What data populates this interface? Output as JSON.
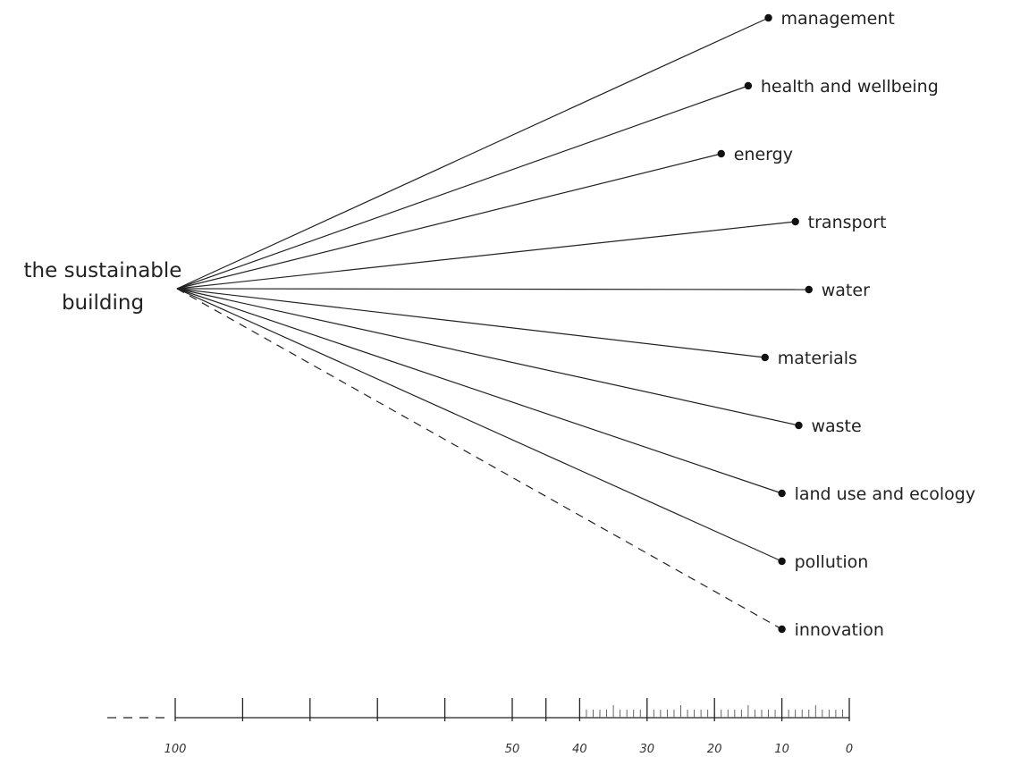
{
  "hub": {
    "line1": "the sustainable",
    "line2": "building"
  },
  "categories": [
    {
      "label": "management",
      "value": 12,
      "dashed": false
    },
    {
      "label": "health and wellbeing",
      "value": 15,
      "dashed": false
    },
    {
      "label": "energy",
      "value": 19,
      "dashed": false
    },
    {
      "label": "transport",
      "value": 8,
      "dashed": false
    },
    {
      "label": "water",
      "value": 6,
      "dashed": false
    },
    {
      "label": "materials",
      "value": 12.5,
      "dashed": false
    },
    {
      "label": "waste",
      "value": 7.5,
      "dashed": false
    },
    {
      "label": "land use and ecology",
      "value": 10,
      "dashed": false
    },
    {
      "label": "pollution",
      "value": 10,
      "dashed": false
    },
    {
      "label": "innovation",
      "value": 10,
      "dashed": true
    }
  ],
  "scale": {
    "labels": [
      {
        "text": "100",
        "value": 100
      },
      {
        "text": "50",
        "value": 50
      },
      {
        "text": "40",
        "value": 40
      },
      {
        "text": "30",
        "value": 30
      },
      {
        "text": "20",
        "value": 20
      },
      {
        "text": "10",
        "value": 10
      },
      {
        "text": "0",
        "value": 0
      }
    ],
    "major_ticks": [
      100,
      90,
      80,
      70,
      60,
      50,
      45,
      40,
      30,
      20,
      10,
      0
    ],
    "minor_step": 1,
    "minor_range": [
      0,
      40
    ]
  },
  "colors": {
    "line": "#222222",
    "dot": "#111111",
    "text": "#222222"
  }
}
